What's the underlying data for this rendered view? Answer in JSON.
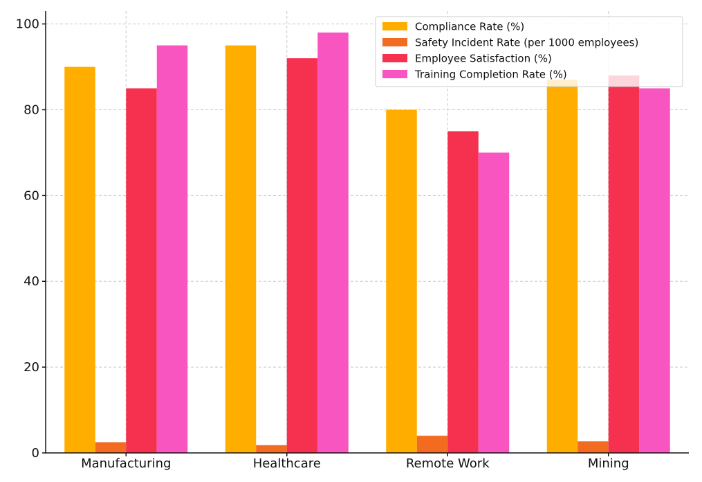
{
  "chart_data": {
    "type": "bar",
    "categories": [
      "Manufacturing",
      "Healthcare",
      "Remote Work",
      "Mining"
    ],
    "series": [
      {
        "name": "Compliance Rate (%)",
        "color": "#FFAE00",
        "values": [
          90,
          95,
          80,
          87
        ]
      },
      {
        "name": "Safety Incident Rate (per 1000 employees)",
        "color": "#F26B21",
        "values": [
          2.5,
          1.8,
          4.0,
          2.7
        ]
      },
      {
        "name": "Employee Satisfaction (%)",
        "color": "#F5314F",
        "values": [
          85,
          92,
          75,
          88
        ]
      },
      {
        "name": "Training Completion Rate (%)",
        "color": "#F855C1",
        "values": [
          95,
          98,
          70,
          85
        ]
      }
    ],
    "yticks": [
      0,
      20,
      40,
      60,
      80,
      100
    ],
    "ylim": [
      0,
      103
    ],
    "grid": true,
    "legend_position": "top-right",
    "title": "",
    "xlabel": "",
    "ylabel": ""
  }
}
